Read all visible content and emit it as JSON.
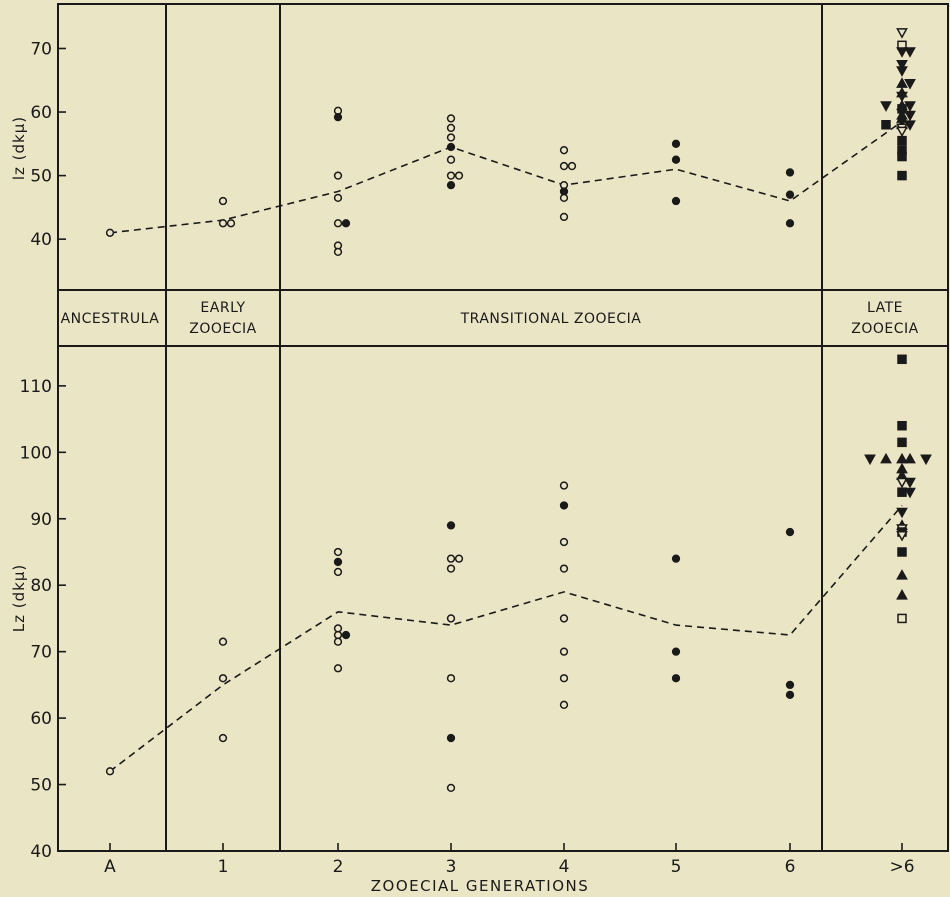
{
  "band": {
    "ancestrula": "ANCESTRULA",
    "early": [
      "EARLY",
      "ZOOECIA"
    ],
    "transitional": "TRANSITIONAL ZOOECIA",
    "late": [
      "LATE",
      "ZOOECIA"
    ]
  },
  "chart_data": [
    {
      "type": "scatter",
      "panel": "top",
      "ylabel": "lz (dkμ)",
      "ylim": [
        32,
        77
      ],
      "yticks": [
        40,
        50,
        60,
        70
      ],
      "categories": [
        "A",
        "1",
        "2",
        "3",
        "4",
        "5",
        "6",
        ">6"
      ],
      "mean_line": [
        41,
        43,
        47.5,
        54.5,
        48.5,
        51,
        46,
        58.5
      ],
      "points": [
        {
          "x": "A",
          "y": 41,
          "marker": "open-circle"
        },
        {
          "x": "1",
          "y": 46,
          "marker": "open-circle"
        },
        {
          "x": "1",
          "y": 42.5,
          "marker": "open-circle"
        },
        {
          "x": "1",
          "y": 42.5,
          "marker": "open-circle"
        },
        {
          "x": "2",
          "y": 60.2,
          "marker": "open-circle"
        },
        {
          "x": "2",
          "y": 59.2,
          "marker": "filled-circle"
        },
        {
          "x": "2",
          "y": 50,
          "marker": "open-circle"
        },
        {
          "x": "2",
          "y": 46.5,
          "marker": "open-circle"
        },
        {
          "x": "2",
          "y": 42.5,
          "marker": "open-circle"
        },
        {
          "x": "2",
          "y": 42.5,
          "marker": "filled-circle"
        },
        {
          "x": "2",
          "y": 39,
          "marker": "open-circle"
        },
        {
          "x": "2",
          "y": 38,
          "marker": "open-circle"
        },
        {
          "x": "3",
          "y": 59,
          "marker": "open-circle"
        },
        {
          "x": "3",
          "y": 57.5,
          "marker": "open-circle"
        },
        {
          "x": "3",
          "y": 56,
          "marker": "open-circle"
        },
        {
          "x": "3",
          "y": 54.5,
          "marker": "filled-circle"
        },
        {
          "x": "3",
          "y": 52.5,
          "marker": "open-circle"
        },
        {
          "x": "3",
          "y": 50,
          "marker": "open-circle"
        },
        {
          "x": "3",
          "y": 50,
          "marker": "open-circle"
        },
        {
          "x": "3",
          "y": 48.5,
          "marker": "filled-circle"
        },
        {
          "x": "4",
          "y": 54,
          "marker": "open-circle"
        },
        {
          "x": "4",
          "y": 51.5,
          "marker": "open-circle"
        },
        {
          "x": "4",
          "y": 51.5,
          "marker": "open-circle"
        },
        {
          "x": "4",
          "y": 48.5,
          "marker": "open-circle"
        },
        {
          "x": "4",
          "y": 47.5,
          "marker": "filled-circle"
        },
        {
          "x": "4",
          "y": 46.5,
          "marker": "open-circle"
        },
        {
          "x": "4",
          "y": 43.5,
          "marker": "open-circle"
        },
        {
          "x": "5",
          "y": 55,
          "marker": "filled-circle"
        },
        {
          "x": "5",
          "y": 52.5,
          "marker": "filled-circle"
        },
        {
          "x": "5",
          "y": 46,
          "marker": "filled-circle"
        },
        {
          "x": "6",
          "y": 50.5,
          "marker": "filled-circle"
        },
        {
          "x": "6",
          "y": 47,
          "marker": "filled-circle"
        },
        {
          "x": "6",
          "y": 42.5,
          "marker": "filled-circle"
        },
        {
          "x": ">6",
          "y": 72.5,
          "marker": "open-triangle-down"
        },
        {
          "x": ">6",
          "y": 70.5,
          "marker": "open-square"
        },
        {
          "x": ">6",
          "y": 69.5,
          "marker": "filled-triangle-down"
        },
        {
          "x": ">6",
          "y": 69.5,
          "marker": "filled-triangle-down"
        },
        {
          "x": ">6",
          "y": 67.5,
          "marker": "filled-triangle-down"
        },
        {
          "x": ">6",
          "y": 66.5,
          "marker": "filled-triangle-down"
        },
        {
          "x": ">6",
          "y": 64.5,
          "marker": "filled-triangle-up"
        },
        {
          "x": ">6",
          "y": 64.5,
          "marker": "filled-triangle-down"
        },
        {
          "x": ">6",
          "y": 63,
          "marker": "filled-triangle-up"
        },
        {
          "x": ">6",
          "y": 62.5,
          "marker": "filled-triangle-down"
        },
        {
          "x": ">6",
          "y": 61,
          "marker": "filled-triangle-up"
        },
        {
          "x": ">6",
          "y": 61,
          "marker": "filled-triangle-down"
        },
        {
          "x": ">6",
          "y": 61,
          "marker": "filled-triangle-down"
        },
        {
          "x": ">6",
          "y": 60.5,
          "marker": "filled-square"
        },
        {
          "x": ">6",
          "y": 59.5,
          "marker": "filled-triangle-up"
        },
        {
          "x": ">6",
          "y": 59.5,
          "marker": "filled-triangle-down"
        },
        {
          "x": ">6",
          "y": 59,
          "marker": "filled-triangle-up"
        },
        {
          "x": ">6",
          "y": 58,
          "marker": "filled-triangle-up"
        },
        {
          "x": ">6",
          "y": 58,
          "marker": "filled-triangle-down"
        },
        {
          "x": ">6",
          "y": 58,
          "marker": "filled-square"
        },
        {
          "x": ">6",
          "y": 57.5,
          "marker": "open-triangle-down"
        },
        {
          "x": ">6",
          "y": 57,
          "marker": "open-triangle-down"
        },
        {
          "x": ">6",
          "y": 55.5,
          "marker": "filled-square"
        },
        {
          "x": ">6",
          "y": 54,
          "marker": "filled-square"
        },
        {
          "x": ">6",
          "y": 53,
          "marker": "filled-square"
        },
        {
          "x": ">6",
          "y": 50,
          "marker": "filled-square"
        }
      ]
    },
    {
      "type": "scatter",
      "panel": "bottom",
      "ylabel": "Lz (dkμ)",
      "xlabel": "ZOOECIAL GENERATIONS",
      "ylim": [
        40,
        116
      ],
      "yticks": [
        40,
        50,
        60,
        70,
        80,
        90,
        100,
        110
      ],
      "categories": [
        "A",
        "1",
        "2",
        "3",
        "4",
        "5",
        "6",
        ">6"
      ],
      "mean_line": [
        52,
        65,
        76,
        74,
        79,
        74,
        72.5,
        92
      ],
      "points": [
        {
          "x": "A",
          "y": 52,
          "marker": "open-circle"
        },
        {
          "x": "1",
          "y": 71.5,
          "marker": "open-circle"
        },
        {
          "x": "1",
          "y": 66,
          "marker": "open-circle"
        },
        {
          "x": "1",
          "y": 57,
          "marker": "open-circle"
        },
        {
          "x": "2",
          "y": 85,
          "marker": "open-circle"
        },
        {
          "x": "2",
          "y": 83.5,
          "marker": "filled-circle"
        },
        {
          "x": "2",
          "y": 82,
          "marker": "open-circle"
        },
        {
          "x": "2",
          "y": 73.5,
          "marker": "open-circle"
        },
        {
          "x": "2",
          "y": 72.5,
          "marker": "open-circle"
        },
        {
          "x": "2",
          "y": 72.5,
          "marker": "filled-circle"
        },
        {
          "x": "2",
          "y": 71.5,
          "marker": "open-circle"
        },
        {
          "x": "2",
          "y": 67.5,
          "marker": "open-circle"
        },
        {
          "x": "3",
          "y": 89,
          "marker": "filled-circle"
        },
        {
          "x": "3",
          "y": 84,
          "marker": "open-circle"
        },
        {
          "x": "3",
          "y": 84,
          "marker": "open-circle"
        },
        {
          "x": "3",
          "y": 82.5,
          "marker": "open-circle"
        },
        {
          "x": "3",
          "y": 75,
          "marker": "open-circle"
        },
        {
          "x": "3",
          "y": 66,
          "marker": "open-circle"
        },
        {
          "x": "3",
          "y": 57,
          "marker": "filled-circle"
        },
        {
          "x": "3",
          "y": 49.5,
          "marker": "open-circle"
        },
        {
          "x": "4",
          "y": 95,
          "marker": "open-circle"
        },
        {
          "x": "4",
          "y": 92,
          "marker": "filled-circle"
        },
        {
          "x": "4",
          "y": 86.5,
          "marker": "open-circle"
        },
        {
          "x": "4",
          "y": 82.5,
          "marker": "open-circle"
        },
        {
          "x": "4",
          "y": 75,
          "marker": "open-circle"
        },
        {
          "x": "4",
          "y": 70,
          "marker": "open-circle"
        },
        {
          "x": "4",
          "y": 66,
          "marker": "open-circle"
        },
        {
          "x": "4",
          "y": 62,
          "marker": "open-circle"
        },
        {
          "x": "5",
          "y": 84,
          "marker": "filled-circle"
        },
        {
          "x": "5",
          "y": 70,
          "marker": "filled-circle"
        },
        {
          "x": "5",
          "y": 66,
          "marker": "filled-circle"
        },
        {
          "x": "6",
          "y": 88,
          "marker": "filled-circle"
        },
        {
          "x": "6",
          "y": 65,
          "marker": "filled-circle"
        },
        {
          "x": "6",
          "y": 63.5,
          "marker": "filled-circle"
        },
        {
          "x": ">6",
          "y": 114,
          "marker": "filled-square"
        },
        {
          "x": ">6",
          "y": 104,
          "marker": "filled-square"
        },
        {
          "x": ">6",
          "y": 101.5,
          "marker": "filled-square"
        },
        {
          "x": ">6",
          "y": 99,
          "marker": "filled-triangle-up"
        },
        {
          "x": ">6",
          "y": 99,
          "marker": "filled-triangle-up"
        },
        {
          "x": ">6",
          "y": 99,
          "marker": "filled-triangle-up"
        },
        {
          "x": ">6",
          "y": 99,
          "marker": "filled-triangle-down"
        },
        {
          "x": ">6",
          "y": 99,
          "marker": "filled-triangle-down"
        },
        {
          "x": ">6",
          "y": 97.5,
          "marker": "filled-triangle-up"
        },
        {
          "x": ">6",
          "y": 96.5,
          "marker": "filled-triangle-up"
        },
        {
          "x": ">6",
          "y": 95.5,
          "marker": "open-triangle-down"
        },
        {
          "x": ">6",
          "y": 95.5,
          "marker": "filled-triangle-down"
        },
        {
          "x": ">6",
          "y": 94,
          "marker": "filled-square"
        },
        {
          "x": ">6",
          "y": 94,
          "marker": "filled-triangle-down"
        },
        {
          "x": ">6",
          "y": 91,
          "marker": "filled-triangle-down"
        },
        {
          "x": ">6",
          "y": 89,
          "marker": "filled-triangle-up"
        },
        {
          "x": ">6",
          "y": 88.5,
          "marker": "open-triangle-down"
        },
        {
          "x": ">6",
          "y": 88,
          "marker": "filled-square"
        },
        {
          "x": ">6",
          "y": 87.5,
          "marker": "open-triangle-down"
        },
        {
          "x": ">6",
          "y": 85,
          "marker": "filled-square"
        },
        {
          "x": ">6",
          "y": 81.5,
          "marker": "filled-triangle-up"
        },
        {
          "x": ">6",
          "y": 78.5,
          "marker": "filled-triangle-up"
        },
        {
          "x": ">6",
          "y": 75,
          "marker": "open-square"
        }
      ]
    }
  ]
}
